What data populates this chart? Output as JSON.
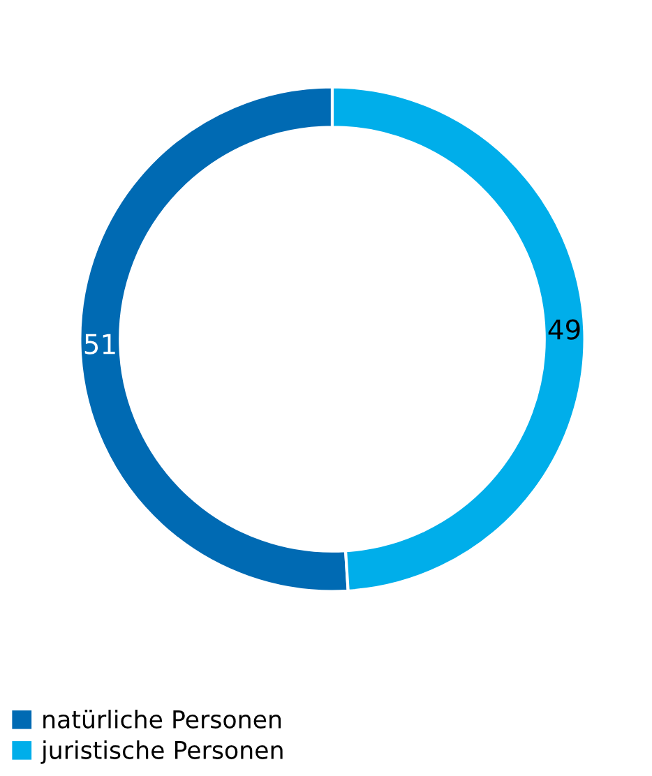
{
  "chart_data": {
    "type": "donut",
    "categories": [
      "natürliche Personen",
      "juristische Personen"
    ],
    "values": [
      51,
      49
    ],
    "colors": [
      "#006ab3",
      "#00aeea"
    ],
    "data_labels": true,
    "legend": "bottom left"
  }
}
